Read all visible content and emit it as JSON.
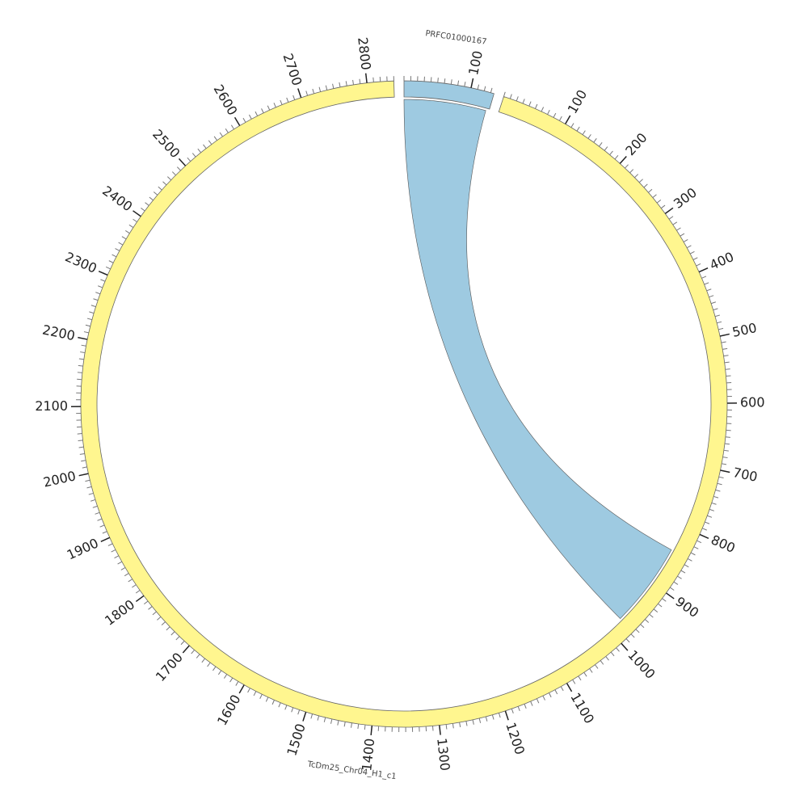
{
  "chart_data": {
    "type": "chord",
    "segments": [
      {
        "name": "PRFC01000167",
        "length": 135,
        "color": "#9ecae1",
        "ticks": [
          100
        ]
      },
      {
        "name": "TcDm25_Chr04_H1_c1",
        "length": 2840,
        "color": "#fff68f",
        "ticks": [
          100,
          200,
          300,
          400,
          500,
          600,
          700,
          800,
          900,
          1000,
          1100,
          1200,
          1300,
          1400,
          1500,
          1600,
          1700,
          1800,
          1900,
          2000,
          2100,
          2200,
          2300,
          2400,
          2500,
          2600,
          2700,
          2800
        ]
      }
    ],
    "links": [
      {
        "source": "PRFC01000167",
        "source_range": [
          0,
          130
        ],
        "target": "TcDm25_Chr04_H1_c1",
        "target_range": [
          840,
          975
        ],
        "color": "#9ecae1"
      }
    ],
    "minor_tick_step": 10
  }
}
